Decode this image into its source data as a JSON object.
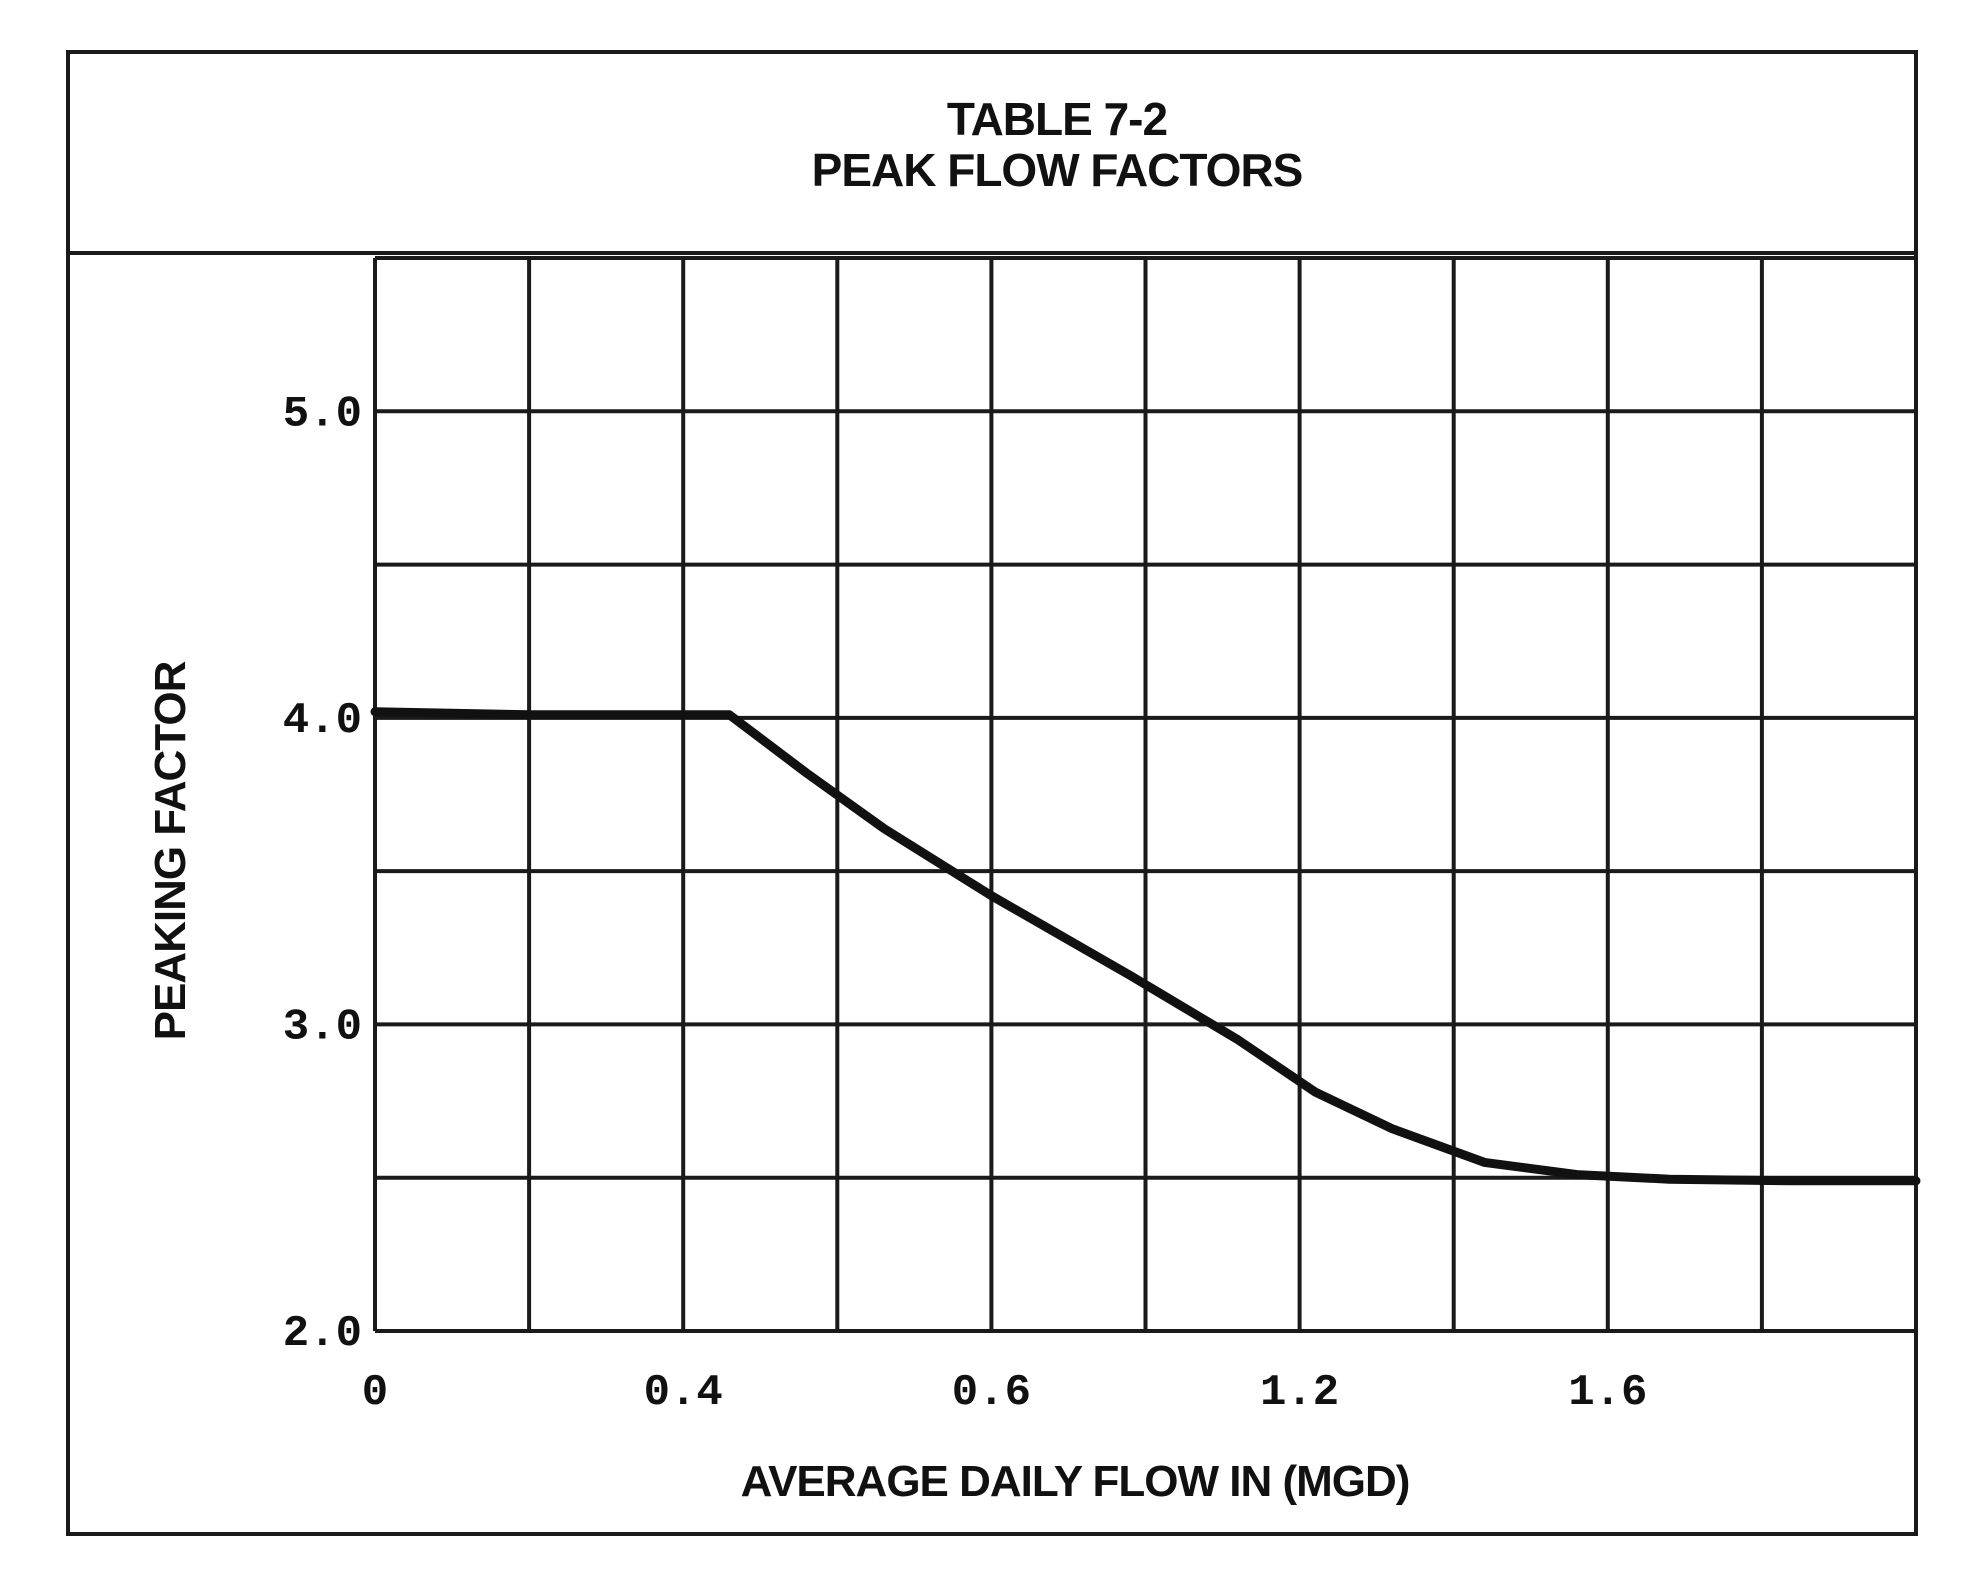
{
  "chart_data": {
    "type": "line",
    "title": "TABLE 7-2",
    "subtitle": "PEAK FLOW FACTORS",
    "xlabel": "AVERAGE DAILY FLOW IN (MGD)",
    "ylabel": "PEAKING FACTOR",
    "ylim": [
      2.0,
      5.5
    ],
    "grid": true,
    "x_columns": 10,
    "x_tick_labels": [
      {
        "col": 0,
        "label": "0"
      },
      {
        "col": 2,
        "label": "0.4"
      },
      {
        "col": 4,
        "label": "0.6"
      },
      {
        "col": 6,
        "label": "1.2"
      },
      {
        "col": 8,
        "label": "1.6"
      }
    ],
    "y_grid_values": [
      2.0,
      2.5,
      3.0,
      3.5,
      4.0,
      4.5,
      5.0,
      5.5
    ],
    "y_tick_labels": [
      {
        "value": 5.0,
        "label": "5.0"
      },
      {
        "value": 4.0,
        "label": "4.0"
      },
      {
        "value": 3.0,
        "label": "3.0"
      },
      {
        "value": 2.0,
        "label": "2.0"
      }
    ],
    "series": [
      {
        "name": "Peaking factor",
        "points": [
          {
            "col": 0.0,
            "y": 4.02
          },
          {
            "col": 1.0,
            "y": 4.01
          },
          {
            "col": 2.0,
            "y": 4.01
          },
          {
            "col": 2.3,
            "y": 4.01
          },
          {
            "col": 2.8,
            "y": 3.82
          },
          {
            "col": 3.3,
            "y": 3.64
          },
          {
            "col": 4.0,
            "y": 3.42
          },
          {
            "col": 4.9,
            "y": 3.16
          },
          {
            "col": 5.6,
            "y": 2.95
          },
          {
            "col": 6.1,
            "y": 2.78
          },
          {
            "col": 6.6,
            "y": 2.66
          },
          {
            "col": 7.2,
            "y": 2.55
          },
          {
            "col": 7.8,
            "y": 2.51
          },
          {
            "col": 8.4,
            "y": 2.495
          },
          {
            "col": 9.2,
            "y": 2.49
          },
          {
            "col": 10.0,
            "y": 2.49
          }
        ]
      }
    ]
  }
}
